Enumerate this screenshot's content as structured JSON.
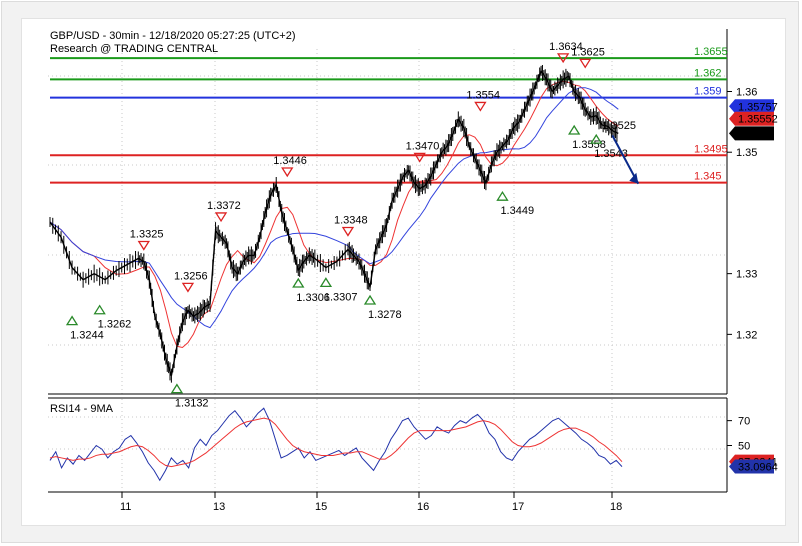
{
  "header": {
    "line1": "GBP/USD - 30min - 12/18/2020 05:27:25 (UTC+2)",
    "line2": "Research @ TRADING CENTRAL"
  },
  "rsi_panel": {
    "label": "RSI14 - 9MA"
  },
  "colors": {
    "resistance": "#1a9a1a",
    "pivot": "#2233dd",
    "support": "#dd2222",
    "price": "#000000",
    "ma_fast": "#ee3333",
    "ma_slow": "#3344dd",
    "rsi": "#2233aa",
    "rsi_ma": "#ee3333",
    "arrow": "#0a2a8a",
    "up_marker": "#2a8a2a",
    "down_marker": "#dd2222"
  },
  "chart_data": [
    {
      "type": "line",
      "name": "price",
      "x_ticks": [
        "11",
        "13",
        "15",
        "16",
        "17",
        "18"
      ],
      "y_ticks": [
        "1.36",
        "1.35",
        "1.33",
        "1.32"
      ],
      "ylim": [
        1.311,
        1.367
      ],
      "levels": [
        {
          "label": "1.3655",
          "value": 1.3655,
          "kind": "resistance"
        },
        {
          "label": "1.362",
          "value": 1.362,
          "kind": "resistance"
        },
        {
          "label": "1.359",
          "value": 1.359,
          "kind": "pivot"
        },
        {
          "label": "1.3495",
          "value": 1.3495,
          "kind": "support"
        },
        {
          "label": "1.345",
          "value": 1.345,
          "kind": "support"
        }
      ],
      "price_badges": [
        {
          "label": "1.35757",
          "value": 1.35757,
          "color": "#2233dd"
        },
        {
          "label": "1.35552",
          "value": 1.35552,
          "color": "#dd2222"
        },
        {
          "label": "1.3531",
          "value": 1.3531,
          "color": "#000000"
        }
      ],
      "markers": [
        {
          "label": "1.3325",
          "x": 0.17,
          "value": 1.3325,
          "dir": "down"
        },
        {
          "label": "1.3244",
          "x": 0.04,
          "value": 1.3244,
          "dir": "up"
        },
        {
          "label": "1.3262",
          "x": 0.09,
          "value": 1.3262,
          "dir": "up"
        },
        {
          "label": "1.3256",
          "x": 0.25,
          "value": 1.3256,
          "dir": "down"
        },
        {
          "label": "1.3132",
          "x": 0.23,
          "value": 1.3132,
          "dir": "up"
        },
        {
          "label": "1.3372",
          "x": 0.31,
          "value": 1.3372,
          "dir": "down"
        },
        {
          "label": "1.3446",
          "x": 0.43,
          "value": 1.3446,
          "dir": "down"
        },
        {
          "label": "1.3306",
          "x": 0.45,
          "value": 1.3306,
          "dir": "up"
        },
        {
          "label": "1.3307",
          "x": 0.5,
          "value": 1.3307,
          "dir": "up"
        },
        {
          "label": "1.3348",
          "x": 0.54,
          "value": 1.3348,
          "dir": "down"
        },
        {
          "label": "1.3278",
          "x": 0.58,
          "value": 1.3278,
          "dir": "up"
        },
        {
          "label": "1.3470",
          "x": 0.67,
          "value": 1.347,
          "dir": "down"
        },
        {
          "label": "1.3554",
          "x": 0.78,
          "value": 1.3554,
          "dir": "down"
        },
        {
          "label": "1.3449",
          "x": 0.82,
          "value": 1.3449,
          "dir": "up"
        },
        {
          "label": "1.3634",
          "x": 0.93,
          "value": 1.3634,
          "dir": "down"
        },
        {
          "label": "1.3625",
          "x": 0.97,
          "value": 1.3625,
          "dir": "down"
        },
        {
          "label": "1.3558",
          "x": 0.95,
          "value": 1.3558,
          "dir": "up"
        },
        {
          "label": "1.3543",
          "x": 0.99,
          "value": 1.3543,
          "dir": "up"
        },
        {
          "label": "1.3525",
          "x": 1.03,
          "value": 1.3525,
          "dir": "none"
        }
      ],
      "series": [
        {
          "name": "price",
          "x": [
            0.0,
            0.02,
            0.04,
            0.06,
            0.08,
            0.1,
            0.12,
            0.14,
            0.16,
            0.17,
            0.18,
            0.19,
            0.2,
            0.21,
            0.22,
            0.23,
            0.24,
            0.25,
            0.26,
            0.27,
            0.28,
            0.29,
            0.3,
            0.31,
            0.32,
            0.33,
            0.34,
            0.35,
            0.36,
            0.37,
            0.38,
            0.39,
            0.4,
            0.41,
            0.42,
            0.43,
            0.44,
            0.45,
            0.46,
            0.47,
            0.48,
            0.5,
            0.52,
            0.54,
            0.55,
            0.56,
            0.57,
            0.58,
            0.59,
            0.6,
            0.61,
            0.62,
            0.63,
            0.64,
            0.65,
            0.66,
            0.67,
            0.68,
            0.69,
            0.7,
            0.71,
            0.72,
            0.73,
            0.74,
            0.75,
            0.76,
            0.77,
            0.78,
            0.79,
            0.8,
            0.81,
            0.82,
            0.83,
            0.84,
            0.85,
            0.86,
            0.87,
            0.88,
            0.89,
            0.9,
            0.91,
            0.92,
            0.93,
            0.94,
            0.95,
            0.96,
            0.97,
            0.98,
            0.99,
            1.0,
            1.01,
            1.02,
            1.03
          ],
          "values": [
            1.3385,
            1.336,
            1.331,
            1.329,
            1.33,
            1.329,
            1.3305,
            1.3315,
            1.3325,
            1.332,
            1.329,
            1.323,
            1.32,
            1.316,
            1.3132,
            1.318,
            1.322,
            1.324,
            1.323,
            1.3235,
            1.3245,
            1.325,
            1.337,
            1.336,
            1.335,
            1.331,
            1.33,
            1.332,
            1.333,
            1.333,
            1.336,
            1.34,
            1.343,
            1.3446,
            1.34,
            1.337,
            1.334,
            1.3306,
            1.332,
            1.333,
            1.3325,
            1.331,
            1.332,
            1.334,
            1.333,
            1.332,
            1.33,
            1.3278,
            1.334,
            1.336,
            1.338,
            1.342,
            1.344,
            1.346,
            1.347,
            1.345,
            1.344,
            1.3445,
            1.346,
            1.348,
            1.35,
            1.351,
            1.353,
            1.3554,
            1.354,
            1.351,
            1.349,
            1.347,
            1.3449,
            1.348,
            1.35,
            1.351,
            1.352,
            1.354,
            1.355,
            1.357,
            1.359,
            1.361,
            1.3634,
            1.362,
            1.36,
            1.361,
            1.362,
            1.3625,
            1.36,
            1.359,
            1.357,
            1.3558,
            1.356,
            1.3545,
            1.3543,
            1.3535,
            1.3531
          ]
        }
      ]
    },
    {
      "type": "line",
      "name": "rsi",
      "y_ticks": [
        "70",
        "50"
      ],
      "ylim": [
        15,
        85
      ],
      "value_badges": [
        {
          "label": "37.0341",
          "value": 37.0341,
          "color": "#dd2222"
        },
        {
          "label": "33.0964",
          "value": 33.0964,
          "color": "#2233aa"
        }
      ],
      "series": [
        {
          "name": "rsi",
          "values": [
            38,
            45,
            32,
            40,
            35,
            42,
            38,
            44,
            50,
            47,
            40,
            45,
            48,
            55,
            58,
            52,
            45,
            36,
            30,
            22,
            30,
            40,
            35,
            38,
            32,
            48,
            55,
            50,
            58,
            62,
            68,
            74,
            78,
            72,
            65,
            70,
            76,
            80,
            70,
            55,
            40,
            42,
            45,
            48,
            40,
            45,
            38,
            40,
            42,
            44,
            46,
            42,
            45,
            48,
            40,
            35,
            30,
            38,
            45,
            55,
            62,
            70,
            72,
            65,
            60,
            55,
            58,
            65,
            62,
            60,
            66,
            70,
            68,
            72,
            75,
            70,
            60,
            55,
            45,
            40,
            38,
            45,
            50,
            55,
            58,
            62,
            66,
            70,
            72,
            68,
            64,
            60,
            55,
            52,
            48,
            42,
            40,
            35,
            38,
            33
          ]
        },
        {
          "name": "rsi_ma",
          "values": [
            40,
            41,
            40,
            39,
            38,
            39,
            39,
            40,
            42,
            43,
            43,
            44,
            45,
            47,
            49,
            50,
            49,
            46,
            42,
            37,
            34,
            33,
            34,
            35,
            36,
            38,
            41,
            44,
            48,
            52,
            56,
            60,
            64,
            67,
            69,
            70,
            71,
            72,
            71,
            67,
            61,
            55,
            50,
            47,
            45,
            44,
            43,
            42,
            42,
            42,
            43,
            44,
            44,
            45,
            45,
            43,
            41,
            39,
            39,
            42,
            46,
            51,
            56,
            60,
            62,
            62,
            62,
            62,
            62,
            62,
            63,
            64,
            65,
            67,
            69,
            70,
            69,
            67,
            63,
            58,
            53,
            50,
            49,
            49,
            50,
            52,
            55,
            58,
            61,
            63,
            64,
            64,
            62,
            60,
            57,
            53,
            50,
            46,
            42,
            37
          ]
        }
      ]
    }
  ]
}
